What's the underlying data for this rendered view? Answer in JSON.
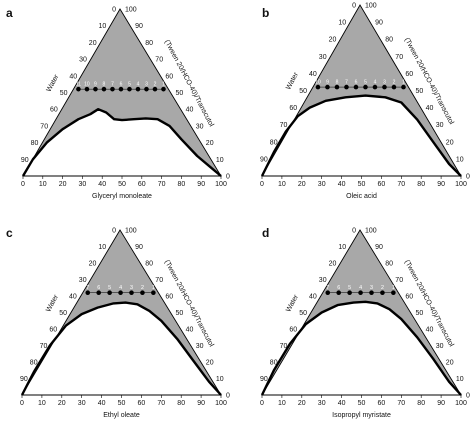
{
  "colors": {
    "region": "#a8a8a8",
    "line": "#000000",
    "background": "#ffffff"
  },
  "ticks": [
    "0",
    "10",
    "20",
    "30",
    "40",
    "50",
    "60",
    "70",
    "80",
    "90",
    "100"
  ],
  "right_axis_label": "(Tween 20/HCO-40)/Transcutol",
  "left_axis_label": "Water",
  "panels": [
    {
      "letter": "a",
      "bottom_label": "Glyceryl monoleate",
      "dot_level": 0.52,
      "dot_labels": [
        "11",
        "10",
        "9",
        "8",
        "7",
        "6",
        "5",
        "4",
        "3",
        "2",
        "1"
      ],
      "boundary_profile": [
        [
          0,
          0
        ],
        [
          0.05,
          0.1
        ],
        [
          0.12,
          0.2
        ],
        [
          0.2,
          0.28
        ],
        [
          0.28,
          0.34
        ],
        [
          0.34,
          0.37
        ],
        [
          0.38,
          0.4
        ],
        [
          0.42,
          0.38
        ],
        [
          0.46,
          0.34
        ],
        [
          0.5,
          0.335
        ],
        [
          0.56,
          0.34
        ],
        [
          0.62,
          0.345
        ],
        [
          0.68,
          0.34
        ],
        [
          0.74,
          0.3
        ],
        [
          0.8,
          0.22
        ],
        [
          0.88,
          0.12
        ],
        [
          0.95,
          0.05
        ],
        [
          1,
          0
        ]
      ]
    },
    {
      "letter": "b",
      "bottom_label": "Oleic acid",
      "dot_level": 0.52,
      "dot_labels": [
        "10",
        "9",
        "8",
        "7",
        "6",
        "5",
        "4",
        "3",
        "2",
        "1"
      ],
      "boundary_profile": [
        [
          0,
          0
        ],
        [
          0.06,
          0.14
        ],
        [
          0.12,
          0.26
        ],
        [
          0.18,
          0.35
        ],
        [
          0.24,
          0.4
        ],
        [
          0.32,
          0.44
        ],
        [
          0.42,
          0.46
        ],
        [
          0.52,
          0.47
        ],
        [
          0.62,
          0.46
        ],
        [
          0.7,
          0.43
        ],
        [
          0.78,
          0.33
        ],
        [
          0.86,
          0.2
        ],
        [
          0.94,
          0.07
        ],
        [
          1,
          0
        ]
      ]
    },
    {
      "letter": "c",
      "bottom_label": "Ethyl oleate",
      "dot_level": 0.62,
      "dot_labels": [
        "7",
        "6",
        "5",
        "4",
        "3",
        "2",
        "1"
      ],
      "boundary_profile": [
        [
          0,
          0
        ],
        [
          0.06,
          0.14
        ],
        [
          0.14,
          0.3
        ],
        [
          0.22,
          0.42
        ],
        [
          0.3,
          0.49
        ],
        [
          0.38,
          0.53
        ],
        [
          0.46,
          0.555
        ],
        [
          0.52,
          0.56
        ],
        [
          0.58,
          0.55
        ],
        [
          0.64,
          0.51
        ],
        [
          0.7,
          0.45
        ],
        [
          0.78,
          0.34
        ],
        [
          0.86,
          0.21
        ],
        [
          0.94,
          0.08
        ],
        [
          1,
          0
        ]
      ]
    },
    {
      "letter": "d",
      "bottom_label": "Isopropyl myristate",
      "dot_level": 0.62,
      "dot_labels": [
        "7",
        "6",
        "5",
        "4",
        "3",
        "2",
        "1"
      ],
      "boundary_profile": [
        [
          0,
          0
        ],
        [
          0.06,
          0.15
        ],
        [
          0.14,
          0.31
        ],
        [
          0.22,
          0.43
        ],
        [
          0.3,
          0.5
        ],
        [
          0.38,
          0.545
        ],
        [
          0.46,
          0.56
        ],
        [
          0.52,
          0.565
        ],
        [
          0.58,
          0.555
        ],
        [
          0.64,
          0.52
        ],
        [
          0.7,
          0.46
        ],
        [
          0.78,
          0.35
        ],
        [
          0.86,
          0.22
        ],
        [
          0.94,
          0.08
        ],
        [
          1,
          0
        ]
      ]
    }
  ]
}
